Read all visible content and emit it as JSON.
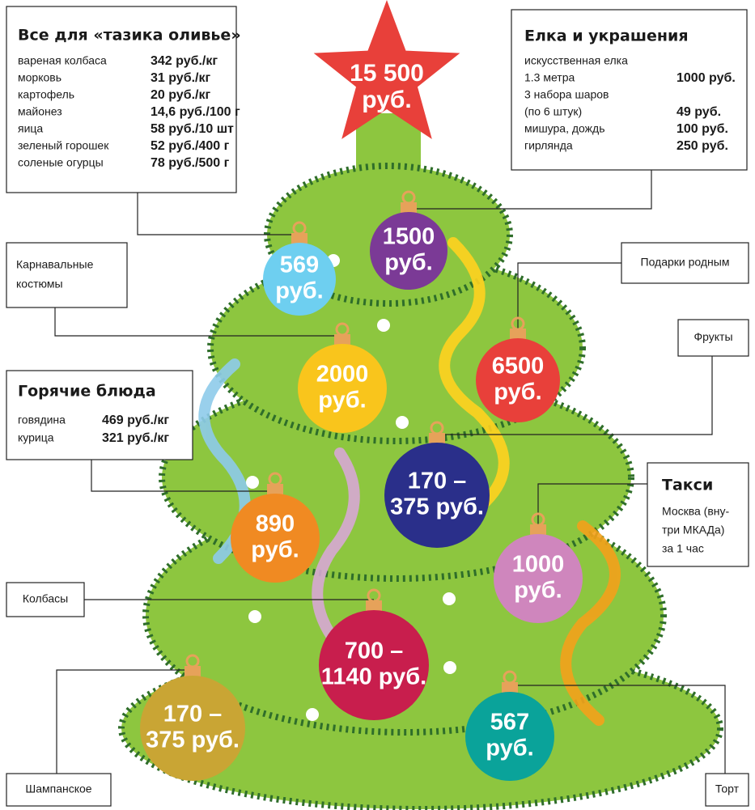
{
  "star": {
    "lines": [
      "15 500",
      "руб."
    ],
    "color": "#e8403a"
  },
  "olivier": {
    "title": "Все для «тазика оливье»",
    "rows": [
      [
        "вареная колбаса",
        "342 руб./кг"
      ],
      [
        "морковь",
        "31 руб./кг"
      ],
      [
        "картофель",
        "20 руб./кг"
      ],
      [
        "майонез",
        "14,6 руб./100 г"
      ],
      [
        "яица",
        "58 руб./10 шт"
      ],
      [
        "зеленый горошек",
        "52 руб./400 г"
      ],
      [
        "соленые огурцы",
        "78 руб./500 г"
      ]
    ]
  },
  "decorations": {
    "title": "Елка и украшения",
    "rows": [
      {
        "name": [
          "искусственная елка",
          "1.3 метра"
        ],
        "price": "1000 руб."
      },
      {
        "name": [
          "3 набора шаров",
          "(по 6 штук)"
        ],
        "price": "49 руб."
      },
      {
        "name": [
          "мишура, дождь"
        ],
        "price": "100 руб."
      },
      {
        "name": [
          "гирлянда"
        ],
        "price": "250 руб."
      }
    ]
  },
  "hot_dishes": {
    "title": "Горячие блюда",
    "rows": [
      [
        "говядина",
        "469 руб./кг"
      ],
      [
        "курица",
        "321 руб./кг"
      ]
    ]
  },
  "taxi": {
    "title": "Такси",
    "lines": [
      "Москва (вну-",
      "три МКАДа)",
      "за 1 час"
    ]
  },
  "labels": [
    {
      "lines": [
        "Карнавальные",
        "костюмы"
      ]
    },
    {
      "lines": [
        "Подарки родным"
      ]
    },
    {
      "lines": [
        "Фрукты"
      ]
    },
    {
      "lines": [
        "Колбасы"
      ]
    },
    {
      "lines": [
        "Шампанское"
      ]
    },
    {
      "lines": [
        "Торт"
      ]
    }
  ],
  "ornaments": [
    {
      "lines": [
        "569",
        "руб."
      ],
      "color": "#6ecff0"
    },
    {
      "lines": [
        "1500",
        "руб."
      ],
      "color": "#7b3a96"
    },
    {
      "lines": [
        "2000",
        "руб."
      ],
      "color": "#f9c51c"
    },
    {
      "lines": [
        "6500",
        "руб."
      ],
      "color": "#e8403a"
    },
    {
      "lines": [
        "170 –",
        "375 руб."
      ],
      "color": "#2a2f8a"
    },
    {
      "lines": [
        "890",
        "руб."
      ],
      "color": "#f08a22"
    },
    {
      "lines": [
        "1000",
        "руб."
      ],
      "color": "#cf86bd"
    },
    {
      "lines": [
        "700 –",
        "1140 руб."
      ],
      "color": "#c81e4d"
    },
    {
      "lines": [
        "170 –",
        "375 руб."
      ],
      "color": "#c9a534"
    },
    {
      "lines": [
        "567",
        "руб."
      ],
      "color": "#0aa39a"
    }
  ]
}
